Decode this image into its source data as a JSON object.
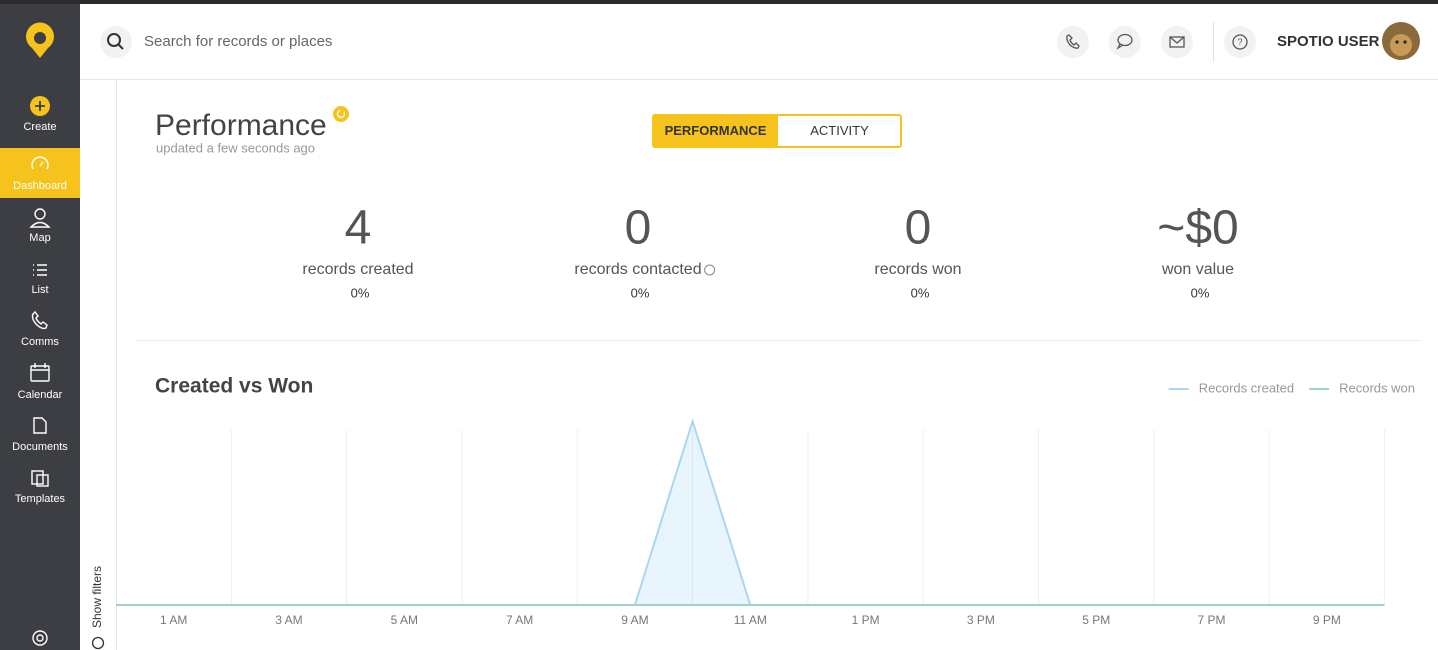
{
  "sidebar": {
    "items": [
      "Create",
      "Dashboard",
      "Map",
      "List",
      "Comms",
      "Calendar",
      "Documents",
      "Templates"
    ],
    "active": 1
  },
  "header": {
    "search_placeholder": "Search for records or places",
    "user_name": "SPOTIO USER"
  },
  "filters_toggle": "Show filters",
  "dashboard": {
    "title": "Performance",
    "updated": "updated a few seconds ago",
    "tabs": [
      "PERFORMANCE",
      "ACTIVITY"
    ],
    "active_tab": 0,
    "stats": [
      {
        "value": 4,
        "label": "records created",
        "change": "0%"
      },
      {
        "value": 0,
        "label": "records contacted",
        "change": "0%"
      },
      {
        "value": 0,
        "label": "records won",
        "change": "0%"
      },
      {
        "value": "~$0",
        "label": "won value",
        "change": "0%"
      }
    ]
  },
  "chart_data": {
    "type": "area",
    "title": "Created vs Won",
    "x": [
      0,
      1,
      2,
      3,
      4,
      5,
      6,
      7,
      8,
      9,
      10,
      11,
      12,
      13,
      14,
      15,
      16,
      17,
      18,
      19,
      20,
      21,
      22
    ],
    "xlim": [
      0,
      23
    ],
    "xticks": [
      {
        "value": 1,
        "label": "1 AM"
      },
      {
        "value": 3,
        "label": "3 AM"
      },
      {
        "value": 5,
        "label": "5 AM"
      },
      {
        "value": 7,
        "label": "7 AM"
      },
      {
        "value": 9,
        "label": "9 AM"
      },
      {
        "value": 11,
        "label": "11 AM"
      },
      {
        "value": 13,
        "label": "1 PM"
      },
      {
        "value": 15,
        "label": "3 PM"
      },
      {
        "value": 17,
        "label": "5 PM"
      },
      {
        "value": 19,
        "label": "7 PM"
      },
      {
        "value": 21,
        "label": "9 PM"
      }
    ],
    "minor_xticks": [
      2,
      4,
      6,
      8,
      10,
      12,
      14,
      16,
      18,
      20,
      22
    ],
    "ylim": [
      0,
      4.2
    ],
    "grid": true,
    "legend": "top-right",
    "series": [
      {
        "name": "Records created",
        "color": "#a9d7f2",
        "values": [
          0,
          0,
          0,
          0,
          0,
          0,
          0,
          0,
          0,
          0,
          4,
          0,
          0,
          0,
          0,
          0,
          0,
          0,
          0,
          0,
          0,
          0,
          0
        ]
      },
      {
        "name": "Records won",
        "color": "#9fd4cc",
        "values": [
          0,
          0,
          0,
          0,
          0,
          0,
          0,
          0,
          0,
          0,
          0,
          0,
          0,
          0,
          0,
          0,
          0,
          0,
          0,
          0,
          0,
          0,
          0
        ]
      }
    ]
  }
}
